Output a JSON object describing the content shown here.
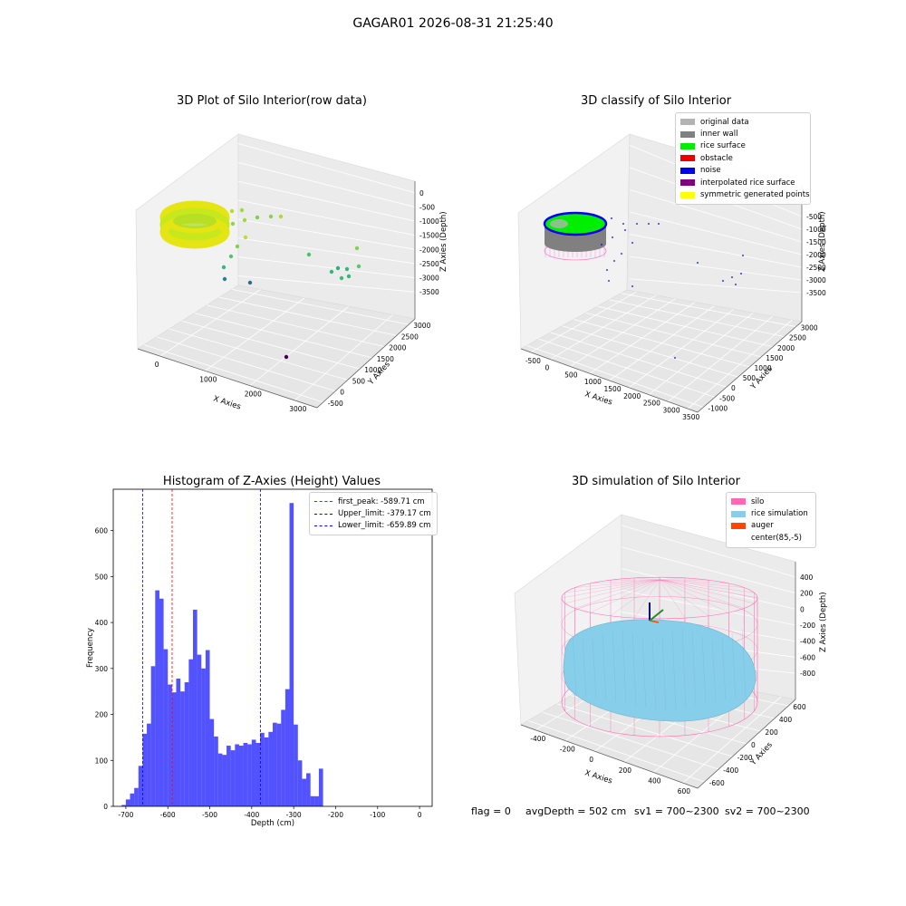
{
  "figure": {
    "suptitle": "GAGAR01 2026-08-31 21:25:40"
  },
  "panel1": {
    "title": "3D Plot of Silo Interior(row data)",
    "xlabel": "X Axies",
    "ylabel": "Y Axies",
    "zlabel": "Z Axies (Depth)",
    "xticks": [
      "0",
      "1000",
      "2000",
      "3000"
    ],
    "yticks": [
      "3000",
      "2500",
      "2000",
      "1500",
      "1000",
      "500",
      "0",
      "-500"
    ],
    "zticks": [
      "0",
      "-500",
      "-1000",
      "-1500",
      "-2000",
      "-2500",
      "-3000",
      "-3500"
    ]
  },
  "panel2": {
    "title": "3D classify of Silo Interior",
    "xlabel": "X Axies",
    "ylabel": "Y Axies",
    "zlabel": "Z Axies (Depth)",
    "xticks": [
      "-500",
      "0",
      "500",
      "1000",
      "1500",
      "2000",
      "2500",
      "3000",
      "3500"
    ],
    "yticks": [
      "3000",
      "2500",
      "2000",
      "1500",
      "1000",
      "500",
      "0",
      "-500",
      "-1000"
    ],
    "zticks": [
      "-500",
      "-1000",
      "-1500",
      "-2000",
      "-2500",
      "-3000",
      "-3500"
    ],
    "legend": [
      {
        "label": "original data",
        "color": "#b3b3b3"
      },
      {
        "label": "inner wall",
        "color": "#808080"
      },
      {
        "label": "rice surface",
        "color": "#00ee00"
      },
      {
        "label": "obstacle",
        "color": "#ee0000"
      },
      {
        "label": "noise",
        "color": "#0000ee"
      },
      {
        "label": "interpolated rice surface",
        "color": "#800080"
      },
      {
        "label": "symmetric generated points",
        "color": "#ffff00"
      }
    ]
  },
  "panel4": {
    "title": "3D simulation of Silo Interior",
    "xlabel": "X Axies",
    "ylabel": "Y Axies",
    "zlabel": "Z Axies (Depth)",
    "xticks": [
      "-400",
      "-200",
      "0",
      "200",
      "400",
      "600"
    ],
    "yticks": [
      "600",
      "400",
      "200",
      "0",
      "-200",
      "-400",
      "-600"
    ],
    "zticks": [
      "400",
      "200",
      "0",
      "-200",
      "-400",
      "-600",
      "-800"
    ],
    "legend": [
      {
        "label": "silo",
        "color": "#ff69b4"
      },
      {
        "label": "rice simulation",
        "color": "#87ceeb"
      },
      {
        "label": "auger",
        "color": "#ff4500"
      },
      {
        "label": "center(85,-5)",
        "color": ""
      }
    ]
  },
  "footer": {
    "flag": "flag = 0",
    "avg": "avgDepth = 502 cm",
    "sv1": "sv1 = 700~2300",
    "sv2": "sv2 = 700~2300"
  },
  "chart_data": [
    {
      "type": "histogram",
      "title": "Histogram of Z-Axies (Height) Values",
      "xlabel": "Depth (cm)",
      "ylabel": "Frequency",
      "xlim": [
        -730,
        30
      ],
      "ylim": [
        0,
        690
      ],
      "bin_width": 10,
      "bin_start": -710,
      "xticks": [
        -700,
        -600,
        -500,
        -400,
        -300,
        -200,
        -100,
        0
      ],
      "yticks": [
        0,
        100,
        200,
        300,
        400,
        500,
        600
      ],
      "counts": [
        3,
        15,
        28,
        40,
        88,
        158,
        180,
        305,
        470,
        452,
        342,
        265,
        248,
        278,
        250,
        270,
        320,
        428,
        330,
        300,
        340,
        190,
        152,
        115,
        112,
        132,
        122,
        135,
        132,
        138,
        135,
        145,
        138,
        160,
        150,
        162,
        182,
        180,
        210,
        255,
        660,
        178,
        100,
        60,
        72,
        22,
        22,
        82
      ],
      "color": "#0000ff",
      "vlines": [
        {
          "label": "first_peak: -589.71 cm",
          "x": -589.71,
          "color": "#ff0000"
        },
        {
          "label": "Upper_limit: -379.17 cm",
          "x": -379.17,
          "color": "#0000ff"
        },
        {
          "label": "Lower_limit: -659.89 cm",
          "x": -659.89,
          "color": "#0000ff"
        }
      ]
    }
  ]
}
